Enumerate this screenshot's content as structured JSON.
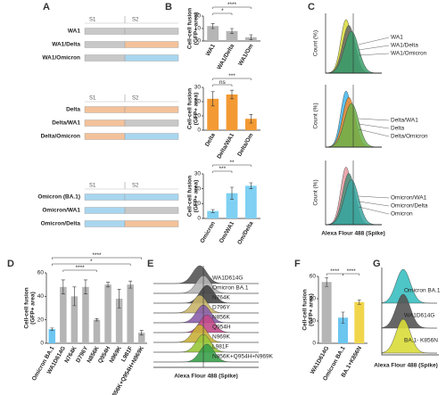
{
  "panel_labels": [
    "A",
    "B",
    "C",
    "D",
    "E",
    "F",
    "G"
  ],
  "diagram_a": {
    "segments": [
      "S1",
      "S2"
    ],
    "groups": [
      [
        "WA1",
        "WA1/Delta",
        "WA1/Omicron"
      ],
      [
        "Delta",
        "Delta/WA1",
        "Delta/Omicron"
      ],
      [
        "Omicron (BA.1)",
        "Omicron/WA1",
        "Omicron/Delta"
      ]
    ]
  },
  "chart_data": [
    {
      "type": "bar",
      "ylabel": [
        "Cell-cell fusion",
        "(GFP+ area)"
      ],
      "categories": [
        "WA1",
        "WA1/Delta",
        "WA1/Om"
      ],
      "values": [
        12,
        8,
        3
      ],
      "errors": [
        2,
        2,
        2
      ],
      "colors": [
        "#b5b5b5",
        "#b5b5b5",
        "#b5b5b5"
      ],
      "ylim": [
        0,
        20
      ],
      "yticks": [
        0,
        10,
        20
      ],
      "annotations": [
        "*",
        "****"
      ]
    },
    {
      "type": "bar",
      "ylabel": [
        "Cell-cell fusion",
        "(GFP+ area)"
      ],
      "categories": [
        "Delta",
        "Delta/WA1",
        "Delta/Om"
      ],
      "values": [
        22,
        25,
        8
      ],
      "errors": [
        5,
        3,
        3
      ],
      "colors": [
        "#f39a34",
        "#f39a34",
        "#f39a34"
      ],
      "ylim": [
        0,
        30
      ],
      "yticks": [
        0,
        10,
        20,
        30
      ],
      "annotations": [
        "ns",
        "***"
      ]
    },
    {
      "type": "bar",
      "ylabel": [
        "Cell-cell fusion",
        "(GFP+ area)"
      ],
      "categories": [
        "Omicron",
        "Om/WA1",
        "Om/Delta"
      ],
      "values": [
        5,
        17,
        22
      ],
      "errors": [
        1,
        4,
        2
      ],
      "colors": [
        "#7fd0f2",
        "#7fd0f2",
        "#7fd0f2"
      ],
      "ylim": [
        0,
        30
      ],
      "yticks": [
        0,
        10,
        20,
        30
      ],
      "annotations": [
        "***",
        "**"
      ]
    },
    {
      "type": "bar",
      "ylabel": [
        "Cell-cell fusion",
        "(GFP+ area)"
      ],
      "categories": [
        "Omicron BA.1",
        "WA1D614G",
        "N764K",
        "D796Y",
        "N856K",
        "Q954H",
        "N969K",
        "L981F",
        "N856K+Q954H+N969K"
      ],
      "values": [
        12,
        48,
        40,
        48,
        20,
        50,
        38,
        50,
        9
      ],
      "errors": [
        1,
        6,
        8,
        6,
        1,
        2,
        8,
        3,
        2
      ],
      "colors": [
        "#6cc6f0",
        "#b5b5b5",
        "#b5b5b5",
        "#b5b5b5",
        "#b5b5b5",
        "#b5b5b5",
        "#b5b5b5",
        "#b5b5b5",
        "#b5b5b5"
      ],
      "ylim": [
        0,
        60
      ],
      "yticks": [
        0,
        20,
        40,
        60
      ],
      "annotations": [
        "****",
        "*",
        "****"
      ]
    },
    {
      "type": "bar",
      "ylabel": [
        "Cell-cell fusion",
        "(GFP+ area)"
      ],
      "categories": [
        "WA1D614G",
        "Omicron BA.1",
        "BA.1+K856N"
      ],
      "values": [
        55,
        23,
        37
      ],
      "errors": [
        4,
        5,
        2
      ],
      "colors": [
        "#b5b5b5",
        "#6cc6f0",
        "#f1d54b"
      ],
      "ylim": [
        0,
        60
      ],
      "yticks": [
        0,
        20,
        40,
        60
      ],
      "annotations": [
        "****",
        "****"
      ]
    }
  ],
  "histograms": {
    "x_label": "Alexa Flour 488 (Spike)",
    "y_label": "Count (%)",
    "c_labels": [
      [
        "WA1",
        "WA1/Delta",
        "WA1/Omicron"
      ],
      [
        "Delta/WA1",
        "Delta",
        "Delta/Omicron"
      ],
      [
        "Omicron/WA1",
        "Omicron/Delta",
        "Omicron"
      ]
    ],
    "e_labels": [
      "WA1D614G",
      "Omicron BA.1",
      "N764K",
      "D796Y",
      "N856K",
      "Q954H",
      "N969K",
      "L981F",
      "N856K+Q954H+N969K"
    ],
    "g_labels": [
      "Omicron BA.1",
      "WA1D614G",
      "BA.1- K856N"
    ]
  }
}
